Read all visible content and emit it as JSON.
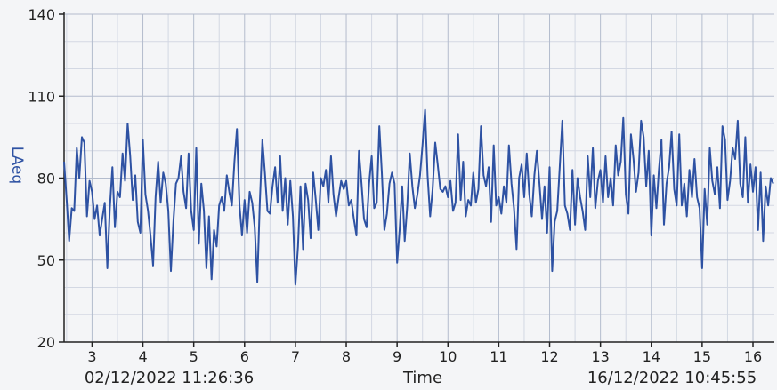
{
  "chart_data": {
    "type": "line",
    "ylabel": "LAeq",
    "xlabel": "Time",
    "start_label": "02/12/2022 11:26:36",
    "end_label": "16/12/2022 10:45:55",
    "ylim": [
      20,
      140
    ],
    "yticks": [
      20,
      50,
      80,
      110,
      140
    ],
    "xlim": [
      2.45,
      16.42
    ],
    "xticks": [
      3,
      4,
      5,
      6,
      7,
      8,
      9,
      10,
      11,
      12,
      13,
      14,
      15,
      16
    ],
    "grid": true,
    "line_color": "#2e52a3",
    "series": [
      {
        "values": [
          [
            2.45,
            86
          ],
          [
            2.5,
            72
          ],
          [
            2.55,
            57
          ],
          [
            2.6,
            69
          ],
          [
            2.65,
            68
          ],
          [
            2.7,
            91
          ],
          [
            2.75,
            80
          ],
          [
            2.8,
            95
          ],
          [
            2.85,
            93
          ],
          [
            2.9,
            66
          ],
          [
            2.95,
            79
          ],
          [
            3.0,
            75
          ],
          [
            3.05,
            65
          ],
          [
            3.1,
            70
          ],
          [
            3.15,
            59
          ],
          [
            3.2,
            65
          ],
          [
            3.25,
            71
          ],
          [
            3.3,
            47
          ],
          [
            3.35,
            69
          ],
          [
            3.4,
            84
          ],
          [
            3.45,
            62
          ],
          [
            3.5,
            75
          ],
          [
            3.55,
            73
          ],
          [
            3.6,
            89
          ],
          [
            3.65,
            79
          ],
          [
            3.7,
            100
          ],
          [
            3.75,
            88
          ],
          [
            3.8,
            72
          ],
          [
            3.85,
            81
          ],
          [
            3.9,
            64
          ],
          [
            3.95,
            60
          ],
          [
            4.0,
            94
          ],
          [
            4.05,
            74
          ],
          [
            4.1,
            68
          ],
          [
            4.15,
            59
          ],
          [
            4.2,
            48
          ],
          [
            4.25,
            73
          ],
          [
            4.3,
            86
          ],
          [
            4.35,
            71
          ],
          [
            4.4,
            82
          ],
          [
            4.45,
            78
          ],
          [
            4.5,
            68
          ],
          [
            4.55,
            46
          ],
          [
            4.6,
            64
          ],
          [
            4.65,
            78
          ],
          [
            4.7,
            80
          ],
          [
            4.75,
            88
          ],
          [
            4.8,
            75
          ],
          [
            4.85,
            69
          ],
          [
            4.9,
            89
          ],
          [
            4.95,
            68
          ],
          [
            5.0,
            61
          ],
          [
            5.05,
            91
          ],
          [
            5.1,
            56
          ],
          [
            5.15,
            78
          ],
          [
            5.2,
            68
          ],
          [
            5.25,
            47
          ],
          [
            5.3,
            66
          ],
          [
            5.35,
            43
          ],
          [
            5.4,
            61
          ],
          [
            5.45,
            55
          ],
          [
            5.5,
            70
          ],
          [
            5.55,
            73
          ],
          [
            5.6,
            68
          ],
          [
            5.65,
            81
          ],
          [
            5.7,
            75
          ],
          [
            5.75,
            70
          ],
          [
            5.8,
            86
          ],
          [
            5.85,
            98
          ],
          [
            5.9,
            70
          ],
          [
            5.95,
            59
          ],
          [
            6.0,
            72
          ],
          [
            6.05,
            60
          ],
          [
            6.1,
            75
          ],
          [
            6.15,
            71
          ],
          [
            6.2,
            62
          ],
          [
            6.25,
            42
          ],
          [
            6.3,
            71
          ],
          [
            6.35,
            94
          ],
          [
            6.4,
            82
          ],
          [
            6.45,
            68
          ],
          [
            6.5,
            67
          ],
          [
            6.55,
            77
          ],
          [
            6.6,
            84
          ],
          [
            6.65,
            71
          ],
          [
            6.7,
            88
          ],
          [
            6.75,
            68
          ],
          [
            6.8,
            80
          ],
          [
            6.85,
            63
          ],
          [
            6.9,
            79
          ],
          [
            6.95,
            66
          ],
          [
            7.0,
            41
          ],
          [
            7.05,
            55
          ],
          [
            7.1,
            77
          ],
          [
            7.15,
            54
          ],
          [
            7.2,
            78
          ],
          [
            7.25,
            72
          ],
          [
            7.3,
            58
          ],
          [
            7.35,
            82
          ],
          [
            7.4,
            72
          ],
          [
            7.45,
            61
          ],
          [
            7.5,
            80
          ],
          [
            7.55,
            77
          ],
          [
            7.6,
            83
          ],
          [
            7.65,
            71
          ],
          [
            7.7,
            88
          ],
          [
            7.75,
            74
          ],
          [
            7.8,
            66
          ],
          [
            7.85,
            73
          ],
          [
            7.9,
            79
          ],
          [
            7.95,
            76
          ],
          [
            8.0,
            79
          ],
          [
            8.05,
            70
          ],
          [
            8.1,
            72
          ],
          [
            8.15,
            65
          ],
          [
            8.2,
            59
          ],
          [
            8.25,
            90
          ],
          [
            8.3,
            78
          ],
          [
            8.35,
            65
          ],
          [
            8.4,
            62
          ],
          [
            8.45,
            78
          ],
          [
            8.5,
            88
          ],
          [
            8.55,
            69
          ],
          [
            8.6,
            71
          ],
          [
            8.65,
            99
          ],
          [
            8.7,
            82
          ],
          [
            8.75,
            61
          ],
          [
            8.8,
            67
          ],
          [
            8.85,
            78
          ],
          [
            8.9,
            82
          ],
          [
            8.95,
            78
          ],
          [
            9.0,
            49
          ],
          [
            9.05,
            61
          ],
          [
            9.1,
            77
          ],
          [
            9.15,
            57
          ],
          [
            9.2,
            70
          ],
          [
            9.25,
            89
          ],
          [
            9.3,
            77
          ],
          [
            9.35,
            69
          ],
          [
            9.4,
            74
          ],
          [
            9.45,
            81
          ],
          [
            9.5,
            92
          ],
          [
            9.55,
            105
          ],
          [
            9.6,
            81
          ],
          [
            9.65,
            66
          ],
          [
            9.7,
            76
          ],
          [
            9.75,
            93
          ],
          [
            9.8,
            85
          ],
          [
            9.85,
            76
          ],
          [
            9.9,
            75
          ],
          [
            9.95,
            77
          ],
          [
            10.0,
            73
          ],
          [
            10.05,
            79
          ],
          [
            10.1,
            68
          ],
          [
            10.15,
            71
          ],
          [
            10.2,
            96
          ],
          [
            10.25,
            72
          ],
          [
            10.3,
            86
          ],
          [
            10.35,
            66
          ],
          [
            10.4,
            72
          ],
          [
            10.45,
            70
          ],
          [
            10.5,
            82
          ],
          [
            10.55,
            71
          ],
          [
            10.6,
            76
          ],
          [
            10.65,
            99
          ],
          [
            10.7,
            81
          ],
          [
            10.75,
            77
          ],
          [
            10.8,
            84
          ],
          [
            10.85,
            64
          ],
          [
            10.9,
            92
          ],
          [
            10.95,
            70
          ],
          [
            11.0,
            73
          ],
          [
            11.05,
            67
          ],
          [
            11.1,
            77
          ],
          [
            11.15,
            71
          ],
          [
            11.2,
            92
          ],
          [
            11.25,
            78
          ],
          [
            11.3,
            69
          ],
          [
            11.35,
            54
          ],
          [
            11.4,
            80
          ],
          [
            11.45,
            85
          ],
          [
            11.5,
            73
          ],
          [
            11.55,
            89
          ],
          [
            11.6,
            74
          ],
          [
            11.65,
            66
          ],
          [
            11.7,
            81
          ],
          [
            11.75,
            90
          ],
          [
            11.8,
            78
          ],
          [
            11.85,
            65
          ],
          [
            11.9,
            77
          ],
          [
            11.95,
            60
          ],
          [
            12.0,
            84
          ],
          [
            12.05,
            46
          ],
          [
            12.1,
            64
          ],
          [
            12.15,
            68
          ],
          [
            12.2,
            84
          ],
          [
            12.25,
            101
          ],
          [
            12.3,
            70
          ],
          [
            12.35,
            67
          ],
          [
            12.4,
            61
          ],
          [
            12.45,
            83
          ],
          [
            12.5,
            63
          ],
          [
            12.55,
            80
          ],
          [
            12.6,
            73
          ],
          [
            12.65,
            68
          ],
          [
            12.7,
            61
          ],
          [
            12.75,
            88
          ],
          [
            12.8,
            73
          ],
          [
            12.85,
            91
          ],
          [
            12.9,
            69
          ],
          [
            12.95,
            79
          ],
          [
            13.0,
            83
          ],
          [
            13.05,
            71
          ],
          [
            13.1,
            88
          ],
          [
            13.15,
            73
          ],
          [
            13.2,
            80
          ],
          [
            13.25,
            70
          ],
          [
            13.3,
            92
          ],
          [
            13.35,
            81
          ],
          [
            13.4,
            86
          ],
          [
            13.45,
            102
          ],
          [
            13.5,
            74
          ],
          [
            13.55,
            67
          ],
          [
            13.6,
            96
          ],
          [
            13.65,
            87
          ],
          [
            13.7,
            75
          ],
          [
            13.75,
            82
          ],
          [
            13.8,
            101
          ],
          [
            13.85,
            95
          ],
          [
            13.9,
            77
          ],
          [
            13.95,
            90
          ],
          [
            14.0,
            59
          ],
          [
            14.05,
            81
          ],
          [
            14.1,
            69
          ],
          [
            14.15,
            83
          ],
          [
            14.2,
            94
          ],
          [
            14.25,
            63
          ],
          [
            14.3,
            78
          ],
          [
            14.35,
            84
          ],
          [
            14.4,
            97
          ],
          [
            14.45,
            76
          ],
          [
            14.5,
            70
          ],
          [
            14.55,
            96
          ],
          [
            14.6,
            70
          ],
          [
            14.65,
            78
          ],
          [
            14.7,
            66
          ],
          [
            14.75,
            83
          ],
          [
            14.8,
            73
          ],
          [
            14.85,
            87
          ],
          [
            14.9,
            73
          ],
          [
            14.95,
            69
          ],
          [
            15.0,
            47
          ],
          [
            15.05,
            76
          ],
          [
            15.1,
            63
          ],
          [
            15.15,
            91
          ],
          [
            15.2,
            79
          ],
          [
            15.25,
            74
          ],
          [
            15.3,
            84
          ],
          [
            15.35,
            69
          ],
          [
            15.4,
            99
          ],
          [
            15.45,
            94
          ],
          [
            15.5,
            72
          ],
          [
            15.55,
            79
          ],
          [
            15.6,
            91
          ],
          [
            15.65,
            87
          ],
          [
            15.7,
            101
          ],
          [
            15.75,
            78
          ],
          [
            15.8,
            73
          ],
          [
            15.85,
            95
          ],
          [
            15.9,
            71
          ],
          [
            15.95,
            85
          ],
          [
            16.0,
            75
          ],
          [
            16.05,
            84
          ],
          [
            16.1,
            61
          ],
          [
            16.15,
            82
          ],
          [
            16.2,
            57
          ],
          [
            16.25,
            77
          ],
          [
            16.3,
            70
          ],
          [
            16.35,
            80
          ],
          [
            16.4,
            78
          ]
        ]
      }
    ]
  }
}
